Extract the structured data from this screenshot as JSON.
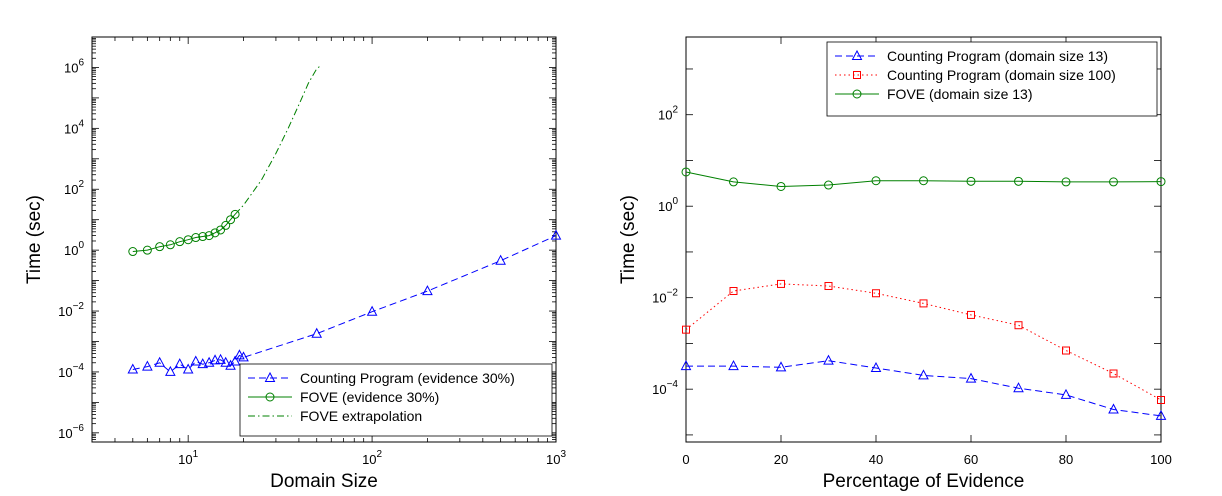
{
  "chart_data": [
    {
      "type": "line",
      "xscale": "log",
      "yscale": "log",
      "xlim": [
        3,
        1000
      ],
      "ylim": [
        5e-07,
        10000000
      ],
      "xlabel": "Domain Size",
      "ylabel": "Time (sec)",
      "grid": false,
      "legend_position": "bottom-right",
      "x_tick_labels": [
        {
          "x": 10,
          "base": "10",
          "exp": "1"
        },
        {
          "x": 100,
          "base": "10",
          "exp": "2"
        },
        {
          "x": 1000,
          "base": "10",
          "exp": "3"
        }
      ],
      "y_tick_labels": [
        {
          "y": 1e-06,
          "base": "10",
          "exp": "−6"
        },
        {
          "y": 0.0001,
          "base": "10",
          "exp": "−4"
        },
        {
          "y": 0.01,
          "base": "10",
          "exp": "−2"
        },
        {
          "y": 1,
          "base": "10",
          "exp": "0"
        },
        {
          "y": 100,
          "base": "10",
          "exp": "2"
        },
        {
          "y": 10000,
          "base": "10",
          "exp": "4"
        },
        {
          "y": 1000000,
          "base": "10",
          "exp": "6"
        }
      ],
      "series": [
        {
          "name": "Counting Program (evidence 30%)",
          "color": "#0000ff",
          "line_style": "dashed",
          "marker": "triangle",
          "x": [
            5,
            6,
            7,
            8,
            9,
            10,
            11,
            12,
            13,
            14,
            15,
            16,
            17,
            18,
            19,
            20,
            50,
            100,
            200,
            500,
            1000
          ],
          "y": [
            0.00012,
            0.00015,
            0.0002,
            0.0001,
            0.00018,
            0.00012,
            0.00022,
            0.00018,
            0.0002,
            0.00024,
            0.00025,
            0.0002,
            0.00016,
            0.00022,
            0.00035,
            0.0003,
            0.0018,
            0.0095,
            0.045,
            0.45,
            3
          ]
        },
        {
          "name": "FOVE (evidence 30%)",
          "color": "#008000",
          "line_style": "solid",
          "marker": "circle",
          "x": [
            5,
            6,
            7,
            8,
            9,
            10,
            11,
            12,
            13,
            14,
            15,
            16,
            17,
            18
          ],
          "y": [
            0.9,
            1.0,
            1.3,
            1.5,
            1.9,
            2.2,
            2.6,
            2.8,
            3.0,
            3.7,
            4.6,
            6.5,
            10,
            15
          ]
        },
        {
          "name": "FOVE extrapolation",
          "color": "#008000",
          "line_style": "dashdot",
          "marker": "none",
          "x": [
            18,
            20,
            25,
            30,
            35,
            40,
            45,
            50,
            53
          ],
          "y": [
            15,
            30,
            200,
            1500,
            10000,
            60000,
            300000,
            900000,
            1200000
          ]
        }
      ]
    },
    {
      "type": "line",
      "xscale": "linear",
      "yscale": "log",
      "xlim": [
        0,
        100
      ],
      "ylim": [
        7e-06,
        5000
      ],
      "xlabel": "Percentage of Evidence",
      "ylabel": "Time (sec)",
      "grid": false,
      "legend_position": "top-right",
      "x_tick_labels": [
        {
          "x": 0,
          "text": "0"
        },
        {
          "x": 20,
          "text": "20"
        },
        {
          "x": 40,
          "text": "40"
        },
        {
          "x": 60,
          "text": "60"
        },
        {
          "x": 80,
          "text": "80"
        },
        {
          "x": 100,
          "text": "100"
        }
      ],
      "y_tick_labels": [
        {
          "y": 0.0001,
          "base": "10",
          "exp": "−4"
        },
        {
          "y": 0.01,
          "base": "10",
          "exp": "−2"
        },
        {
          "y": 1,
          "base": "10",
          "exp": "0"
        },
        {
          "y": 100,
          "base": "10",
          "exp": "2"
        }
      ],
      "series": [
        {
          "name": "Counting Program (domain size 13)",
          "color": "#0000ff",
          "line_style": "dashed",
          "marker": "triangle",
          "x": [
            0,
            10,
            20,
            30,
            40,
            50,
            60,
            70,
            80,
            90,
            100
          ],
          "y": [
            0.00032,
            0.00032,
            0.0003,
            0.00042,
            0.00029,
            0.0002,
            0.00017,
            0.000105,
            7.5e-05,
            3.6e-05,
            2.6e-05
          ]
        },
        {
          "name": "Counting Program (domain size 100)",
          "color": "#ff0000",
          "line_style": "dotted",
          "marker": "square",
          "x": [
            0,
            10,
            20,
            30,
            40,
            50,
            60,
            70,
            80,
            90,
            100
          ],
          "y": [
            0.002,
            0.014,
            0.02,
            0.018,
            0.0125,
            0.0075,
            0.0042,
            0.0025,
            0.0007,
            0.00022,
            5.8e-05
          ]
        },
        {
          "name": "FOVE (domain size 13)",
          "color": "#008000",
          "line_style": "solid",
          "marker": "circle",
          "x": [
            0,
            10,
            20,
            30,
            40,
            50,
            60,
            70,
            80,
            90,
            100
          ],
          "y": [
            5.6,
            3.4,
            2.7,
            2.9,
            3.6,
            3.6,
            3.5,
            3.5,
            3.4,
            3.4,
            3.45
          ]
        }
      ]
    }
  ]
}
